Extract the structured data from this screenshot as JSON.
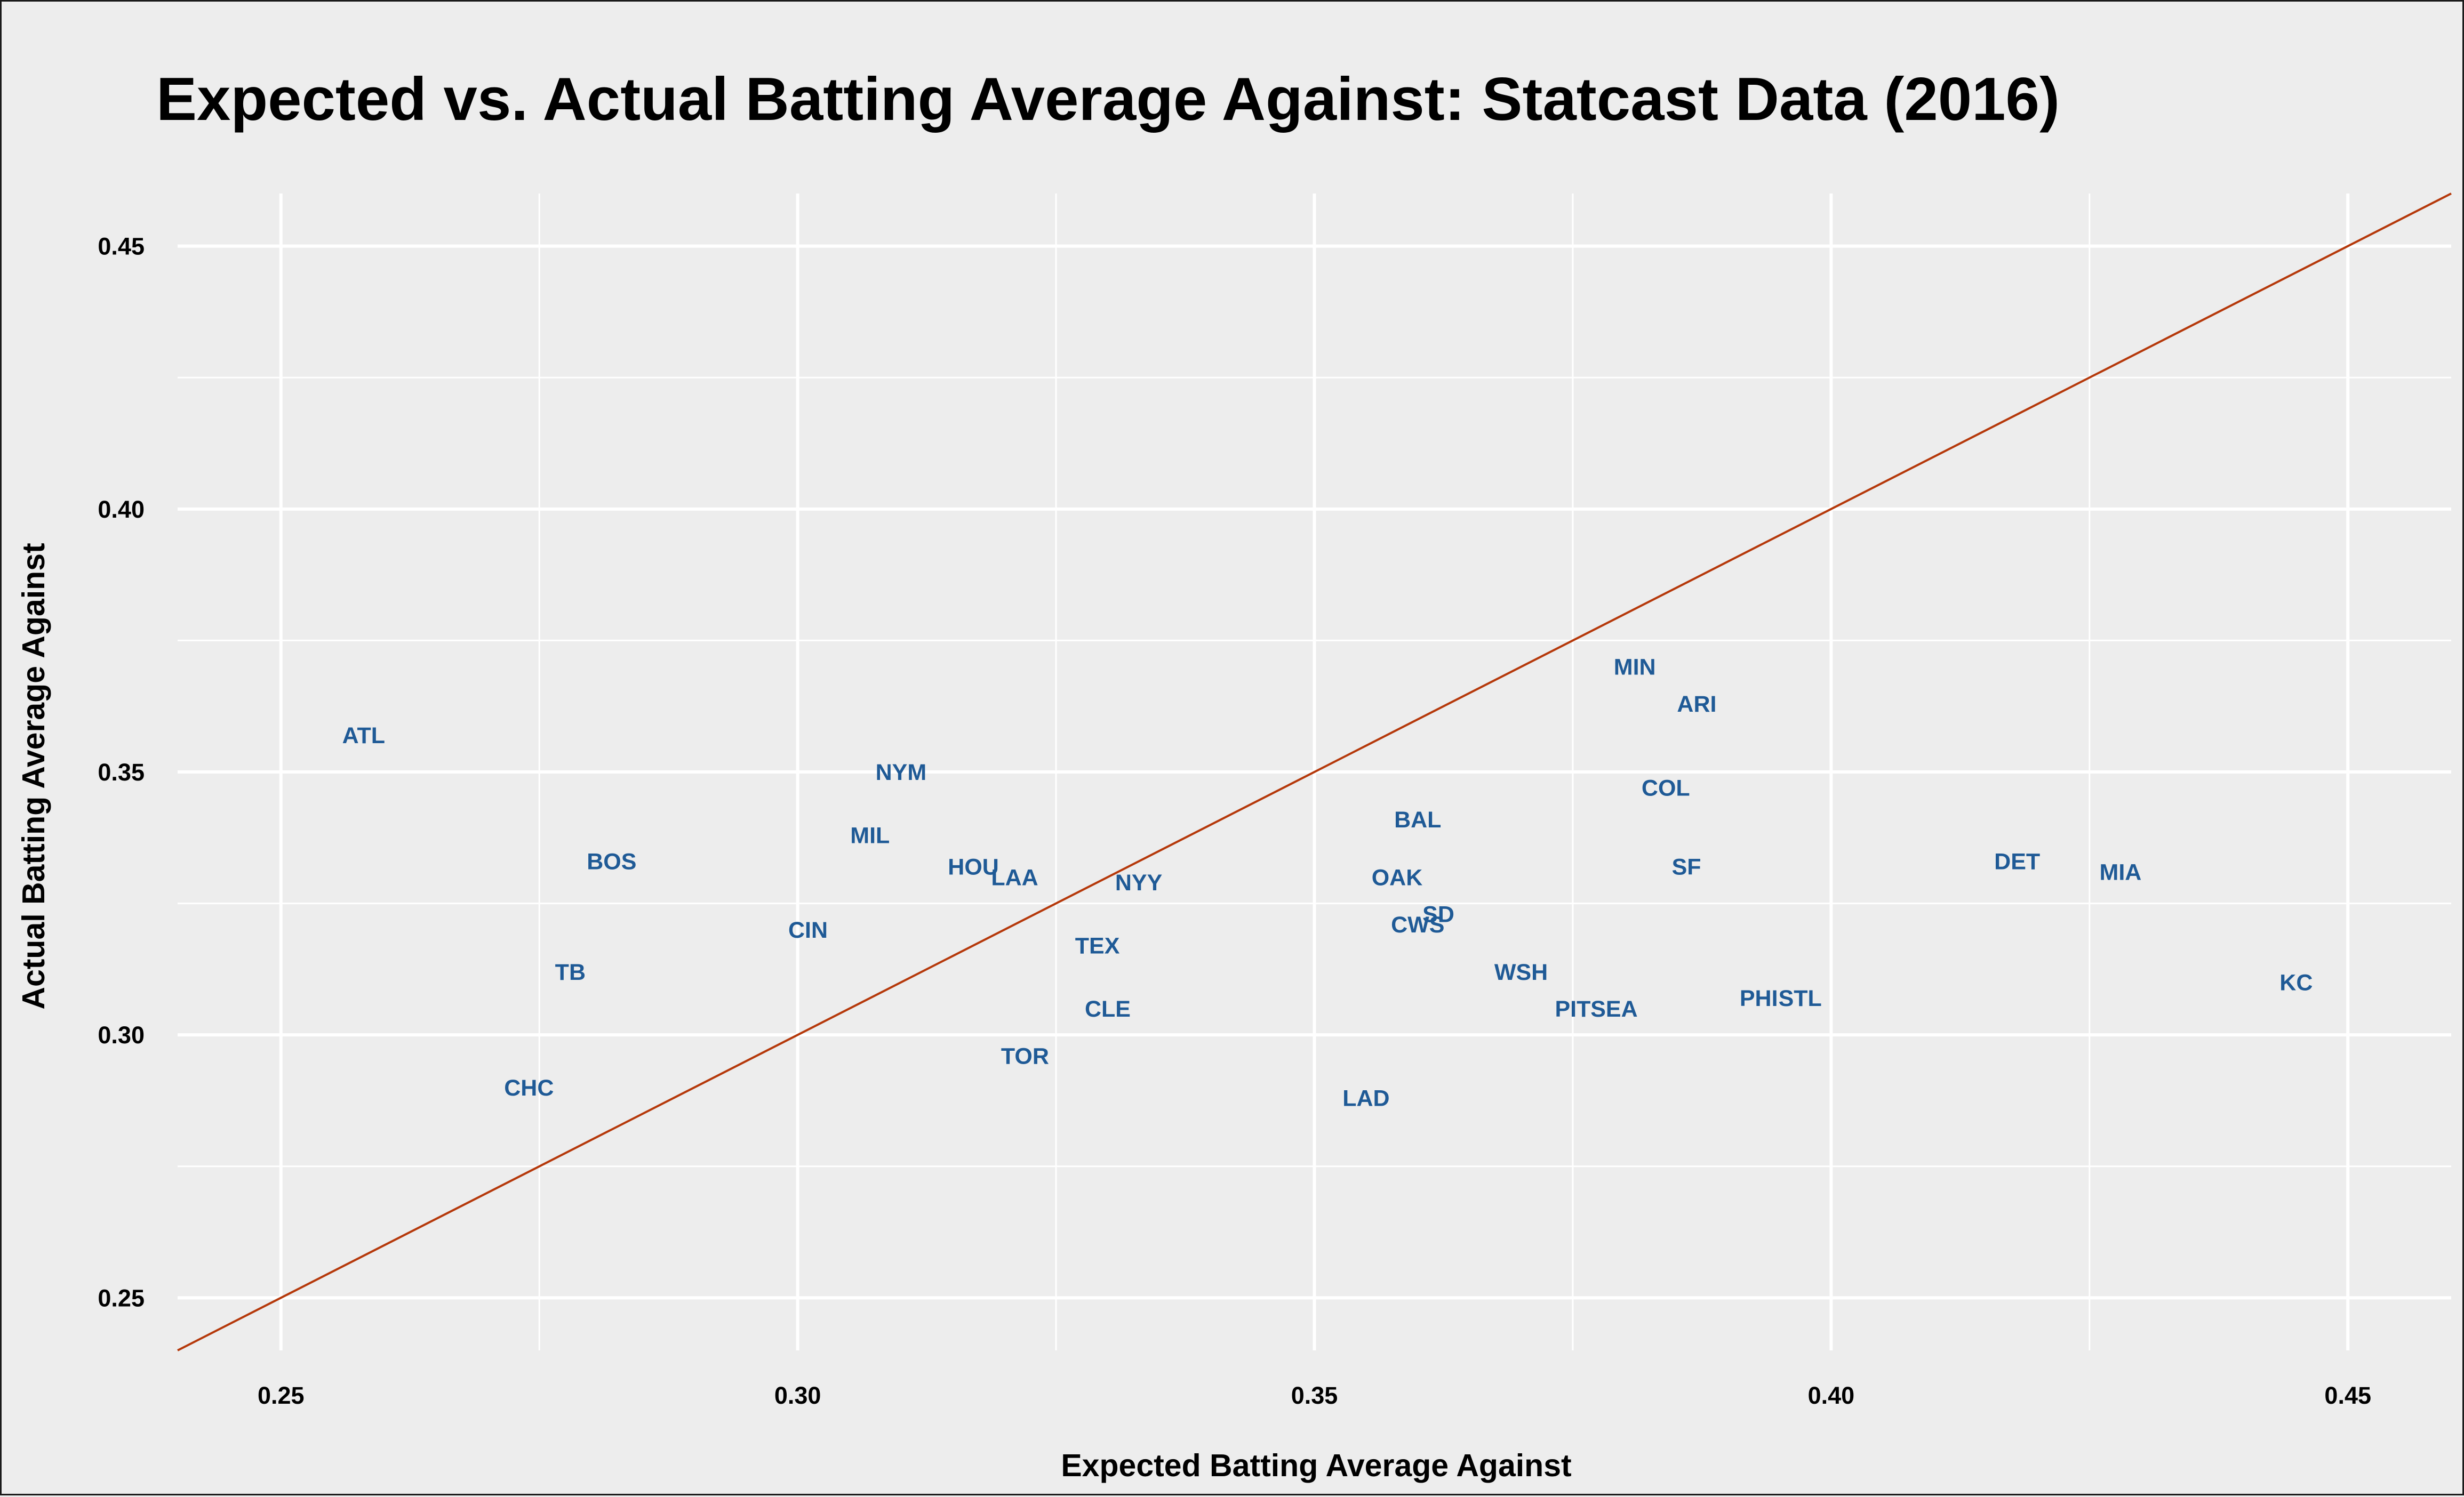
{
  "chart_data": {
    "type": "scatter",
    "title": "Expected vs. Actual Batting Average Against: Statcast Data (2016)",
    "xlabel": "Expected Batting Average Against",
    "ylabel": "Actual Batting Average Against",
    "xlim": [
      0.24,
      0.46
    ],
    "ylim": [
      0.24,
      0.46
    ],
    "x_ticks": [
      0.25,
      0.3,
      0.35,
      0.4,
      0.45
    ],
    "y_ticks": [
      0.25,
      0.3,
      0.35,
      0.4,
      0.45
    ],
    "x_tick_labels": [
      "0.25",
      "0.30",
      "0.35",
      "0.40",
      "0.45"
    ],
    "y_tick_labels": [
      "0.25",
      "0.30",
      "0.35",
      "0.40",
      "0.45"
    ],
    "grid": true,
    "reference_line": {
      "type": "y = x",
      "color": "#b5380a"
    },
    "point_label_color": "#1f5a96",
    "points": [
      {
        "label": "ATL",
        "x": 0.258,
        "y": 0.357
      },
      {
        "label": "BOS",
        "x": 0.282,
        "y": 0.333
      },
      {
        "label": "TB",
        "x": 0.278,
        "y": 0.312
      },
      {
        "label": "CHC",
        "x": 0.274,
        "y": 0.29
      },
      {
        "label": "CIN",
        "x": 0.301,
        "y": 0.32
      },
      {
        "label": "NYM",
        "x": 0.31,
        "y": 0.35
      },
      {
        "label": "MIL",
        "x": 0.307,
        "y": 0.338
      },
      {
        "label": "HOU",
        "x": 0.317,
        "y": 0.332
      },
      {
        "label": "LAA",
        "x": 0.321,
        "y": 0.33
      },
      {
        "label": "NYY",
        "x": 0.333,
        "y": 0.329
      },
      {
        "label": "TEX",
        "x": 0.329,
        "y": 0.317
      },
      {
        "label": "CLE",
        "x": 0.33,
        "y": 0.305
      },
      {
        "label": "TOR",
        "x": 0.322,
        "y": 0.296
      },
      {
        "label": "LAD",
        "x": 0.355,
        "y": 0.288
      },
      {
        "label": "BAL",
        "x": 0.36,
        "y": 0.341
      },
      {
        "label": "OAK",
        "x": 0.358,
        "y": 0.33
      },
      {
        "label": "CWS",
        "x": 0.36,
        "y": 0.321
      },
      {
        "label": "SD",
        "x": 0.362,
        "y": 0.323
      },
      {
        "label": "WSH",
        "x": 0.37,
        "y": 0.312
      },
      {
        "label": "PIT",
        "x": 0.375,
        "y": 0.305
      },
      {
        "label": "SEA",
        "x": 0.379,
        "y": 0.305
      },
      {
        "label": "MIN",
        "x": 0.381,
        "y": 0.37
      },
      {
        "label": "ARI",
        "x": 0.387,
        "y": 0.363
      },
      {
        "label": "COL",
        "x": 0.384,
        "y": 0.347
      },
      {
        "label": "SF",
        "x": 0.386,
        "y": 0.332
      },
      {
        "label": "PHI",
        "x": 0.393,
        "y": 0.307
      },
      {
        "label": "STL",
        "x": 0.397,
        "y": 0.307
      },
      {
        "label": "DET",
        "x": 0.418,
        "y": 0.333
      },
      {
        "label": "MIA",
        "x": 0.428,
        "y": 0.331
      },
      {
        "label": "KC",
        "x": 0.445,
        "y": 0.31
      }
    ]
  }
}
